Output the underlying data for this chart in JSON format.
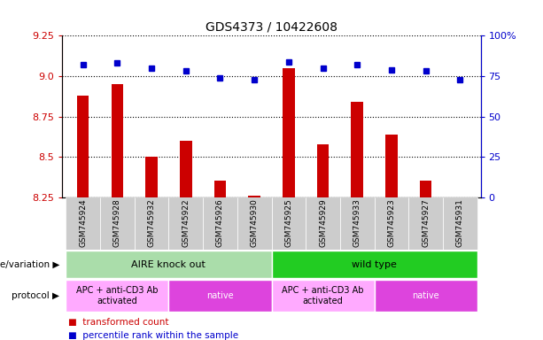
{
  "title": "GDS4373 / 10422608",
  "samples": [
    "GSM745924",
    "GSM745928",
    "GSM745932",
    "GSM745922",
    "GSM745926",
    "GSM745930",
    "GSM745925",
    "GSM745929",
    "GSM745933",
    "GSM745923",
    "GSM745927",
    "GSM745931"
  ],
  "transformed_count": [
    8.88,
    8.95,
    8.5,
    8.6,
    8.35,
    8.26,
    9.05,
    8.58,
    8.84,
    8.64,
    8.35,
    8.25
  ],
  "percentile_rank": [
    82,
    83,
    80,
    78,
    74,
    73,
    84,
    80,
    82,
    79,
    78,
    73
  ],
  "ylim_left": [
    8.25,
    9.25
  ],
  "ylim_right": [
    0,
    100
  ],
  "yticks_left": [
    8.25,
    8.5,
    8.75,
    9.0,
    9.25
  ],
  "yticks_right": [
    0,
    25,
    50,
    75,
    100
  ],
  "ytick_labels_right": [
    "0",
    "25",
    "50",
    "75",
    "100%"
  ],
  "bar_color": "#cc0000",
  "dot_color": "#0000cc",
  "bar_bottom": 8.25,
  "genotype_groups": [
    {
      "label": "AIRE knock out",
      "start": 0,
      "end": 6,
      "color": "#aaddaa"
    },
    {
      "label": "wild type",
      "start": 6,
      "end": 12,
      "color": "#22cc22"
    }
  ],
  "protocol_groups": [
    {
      "label": "APC + anti-CD3 Ab\nactivated",
      "start": 0,
      "end": 3,
      "color": "#ffaaff"
    },
    {
      "label": "native",
      "start": 3,
      "end": 6,
      "color": "#dd44dd"
    },
    {
      "label": "APC + anti-CD3 Ab\nactivated",
      "start": 6,
      "end": 9,
      "color": "#ffaaff"
    },
    {
      "label": "native",
      "start": 9,
      "end": 12,
      "color": "#dd44dd"
    }
  ],
  "legend_red_label": "transformed count",
  "legend_blue_label": "percentile rank within the sample",
  "left_tick_color": "#cc0000",
  "right_tick_color": "#0000cc",
  "genotype_label": "genotype/variation",
  "protocol_label": "protocol",
  "xtick_bg_color": "#cccccc",
  "bar_width": 0.35
}
